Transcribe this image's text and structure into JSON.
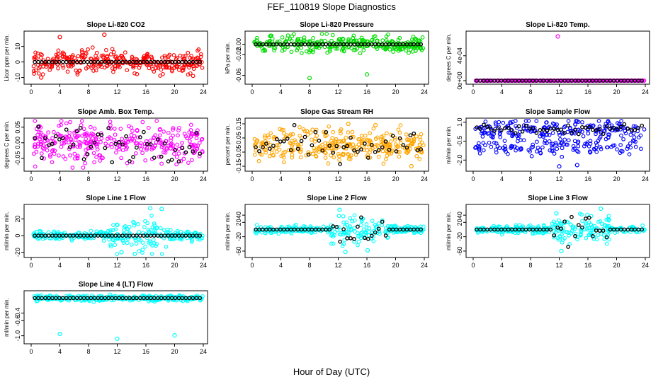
{
  "figure": {
    "title": "FEF_110819  Slope Diagnostics",
    "xlabel": "Hour of Day (UTC)"
  },
  "chart_data": [
    {
      "type": "scatter",
      "title": "Slope Li-820 CO2",
      "ylabel": "Licor ppm per min.",
      "xlim": [
        0,
        24
      ],
      "ylim": [
        -12,
        18
      ],
      "xticks": [
        "0",
        "4",
        "8",
        "12",
        "16",
        "20",
        "24"
      ],
      "yticks": [
        {
          "v": -10,
          "label": "-10"
        },
        {
          "v": 0,
          "label": "0"
        },
        {
          "v": 10,
          "label": "10"
        }
      ],
      "colors": {
        "primary": "#ff0000",
        "reference": "#000000"
      },
      "pattern": {
        "spread": 3.5,
        "outliers": [
          [
            4.0,
            16
          ],
          [
            10.2,
            17.5
          ],
          [
            1.4,
            -10
          ]
        ]
      }
    },
    {
      "type": "scatter",
      "title": "Slope Li-820 Pressure",
      "ylabel": "kPa per min.",
      "xlim": [
        0,
        24
      ],
      "ylim": [
        -0.07,
        0.02
      ],
      "xticks": [
        "0",
        "4",
        "8",
        "12",
        "16",
        "20",
        "24"
      ],
      "yticks": [
        {
          "v": -0.06,
          "label": "-0.06"
        },
        {
          "v": -0.02,
          "label": "-0.02"
        },
        {
          "v": 0.0,
          "label": "0.00"
        }
      ],
      "colors": {
        "primary": "#00dd00",
        "reference": "#000000"
      },
      "pattern": {
        "spread": 0.008,
        "outliers": [
          [
            8.0,
            -0.065
          ],
          [
            16.0,
            -0.058
          ]
        ]
      }
    },
    {
      "type": "scatter",
      "title": "Slope Li-820 Temp.",
      "ylabel": "degrees C per min.",
      "xlim": [
        0,
        24
      ],
      "ylim": [
        0,
        0.00075
      ],
      "xticks": [
        "0",
        "4",
        "8",
        "12",
        "16",
        "20",
        "24"
      ],
      "yticks": [
        {
          "v": 0,
          "label": "0e+00"
        },
        {
          "v": 0.0004,
          "label": "4e-04"
        }
      ],
      "colors": {
        "primary": "#ff00ff",
        "reference": "#000000"
      },
      "pattern": {
        "spread": 0.0,
        "outliers": [
          [
            11.8,
            0.00071
          ]
        ]
      }
    },
    {
      "type": "scatter",
      "title": "Slope Amb. Box Temp.",
      "ylabel": "degrees C per min.",
      "xlim": [
        0,
        24
      ],
      "ylim": [
        -0.08,
        0.07
      ],
      "xticks": [
        "0",
        "4",
        "8",
        "12",
        "16",
        "20",
        "24"
      ],
      "yticks": [
        {
          "v": -0.05,
          "label": "-0.05"
        },
        {
          "v": 0.0,
          "label": "0.00"
        },
        {
          "v": 0.05,
          "label": "0.05"
        }
      ],
      "colors": {
        "primary": "#ff00ff",
        "reference": "#000000"
      },
      "pattern": {
        "spread": 0.032,
        "outliers": []
      }
    },
    {
      "type": "scatter",
      "title": "Slope Gas Stream RH",
      "ylabel": "percent per min.",
      "xlim": [
        0,
        24
      ],
      "ylim": [
        -0.16,
        0.17
      ],
      "xticks": [
        "0",
        "4",
        "8",
        "12",
        "16",
        "20",
        "24"
      ],
      "yticks": [
        {
          "v": -0.15,
          "label": "-0.15"
        },
        {
          "v": -0.05,
          "label": "-0.05"
        },
        {
          "v": 0.05,
          "label": "0.05"
        },
        {
          "v": 0.15,
          "label": "0.15"
        }
      ],
      "colors": {
        "primary": "#ffa500",
        "reference": "#000000"
      },
      "pattern": {
        "spread": 0.055,
        "outliers": [
          [
            13.4,
            0.15
          ],
          [
            17.2,
            0.14
          ],
          [
            22.2,
            -0.15
          ]
        ]
      }
    },
    {
      "type": "scatter",
      "title": "Slope Sample Flow",
      "ylabel": "ml/min per min.",
      "xlim": [
        0,
        24
      ],
      "ylim": [
        -2.6,
        1.1
      ],
      "xticks": [
        "0",
        "4",
        "8",
        "12",
        "16",
        "20",
        "24"
      ],
      "yticks": [
        {
          "v": 1.0,
          "label": "1.0"
        },
        {
          "v": -0.5,
          "label": "-0.5"
        },
        {
          "v": -2.0,
          "label": "-2.0"
        }
      ],
      "colors": {
        "primary": "#0000ff",
        "reference": "#000000"
      },
      "pattern": {
        "spread": 0.35,
        "outliers": [
          [
            14.5,
            -2.4
          ],
          [
            12.0,
            -2.5
          ]
        ]
      }
    },
    {
      "type": "scatter",
      "title": "Slope Line 1 Flow",
      "ylabel": "ml/min per min.",
      "xlim": [
        0,
        24
      ],
      "ylim": [
        -22,
        34
      ],
      "xticks": [
        "0",
        "4",
        "8",
        "12",
        "16",
        "20",
        "24"
      ],
      "yticks": [
        {
          "v": -20,
          "label": "-20"
        },
        {
          "v": 0,
          "label": "0"
        },
        {
          "v": 20,
          "label": "20"
        }
      ],
      "colors": {
        "primary": "#00ffff",
        "reference": "#000000"
      },
      "pattern": {
        "spread": 2.5,
        "outliers": [
          [
            16.6,
            33
          ],
          [
            18.2,
            32
          ],
          [
            12.6,
            -20
          ]
        ]
      }
    },
    {
      "type": "scatter",
      "title": "Slope Line 2 Flow",
      "ylabel": "ml/min per min.",
      "xlim": [
        0,
        24
      ],
      "ylim": [
        -68,
        62
      ],
      "xticks": [
        "0",
        "4",
        "8",
        "12",
        "16",
        "20",
        "24"
      ],
      "yticks": [
        {
          "v": -60,
          "label": "-60"
        },
        {
          "v": -20,
          "label": "-20"
        },
        {
          "v": 20,
          "label": "20"
        },
        {
          "v": 40,
          "label": "40"
        }
      ],
      "colors": {
        "primary": "#00ffff",
        "reference": "#000000"
      },
      "pattern": {
        "spread": 5,
        "outliers": [
          [
            12.2,
            55
          ],
          [
            16.1,
            -58
          ],
          [
            13.0,
            -62
          ]
        ]
      }
    },
    {
      "type": "scatter",
      "title": "Slope Line 3 Flow",
      "ylabel": "ml/min per min.",
      "xlim": [
        0,
        24
      ],
      "ylim": [
        -68,
        62
      ],
      "xticks": [
        "0",
        "4",
        "8",
        "12",
        "16",
        "20",
        "24"
      ],
      "yticks": [
        {
          "v": -60,
          "label": "-60"
        },
        {
          "v": -20,
          "label": "-20"
        },
        {
          "v": 20,
          "label": "20"
        },
        {
          "v": 40,
          "label": "40"
        }
      ],
      "colors": {
        "primary": "#00ffff",
        "reference": "#000000"
      },
      "pattern": {
        "spread": 5,
        "outliers": [
          [
            17.8,
            58
          ],
          [
            12.3,
            -60
          ],
          [
            11.6,
            45
          ]
        ]
      }
    },
    {
      "type": "scatter",
      "title": "Slope Line 4 (LT) Flow",
      "ylabel": "ml/min per min.",
      "xlim": [
        0,
        24
      ],
      "ylim": [
        -1.12,
        0.12
      ],
      "xticks": [
        "0",
        "4",
        "8",
        "12",
        "16",
        "20",
        "24"
      ],
      "yticks": [
        {
          "v": -1.0,
          "label": "-1.0"
        },
        {
          "v": -0.6,
          "label": "-0.6"
        },
        {
          "v": -0.4,
          "label": "-0.4"
        }
      ],
      "colors": {
        "primary": "#00ffff",
        "reference": "#000000"
      },
      "pattern": {
        "spread": 0.035,
        "outliers": [
          [
            4.0,
            -0.95
          ],
          [
            12.0,
            -1.08
          ],
          [
            20.0,
            -0.99
          ]
        ]
      }
    }
  ]
}
